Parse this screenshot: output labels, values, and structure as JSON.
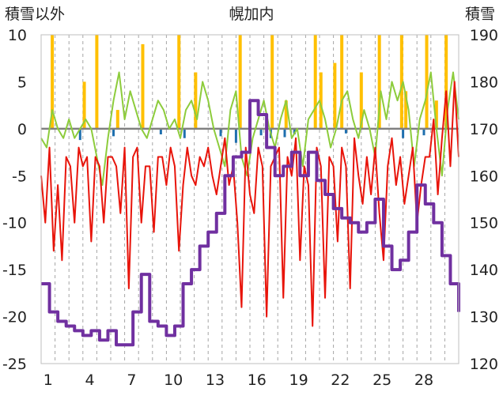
{
  "chart_data": {
    "type": "line",
    "title": "幌加内",
    "left_axis_label": "積雪以外",
    "right_axis_label": "積雪",
    "left_ylim": [
      -25,
      10
    ],
    "left_yticks": [
      "10",
      "5",
      "0",
      "-5",
      "-10",
      "-15",
      "-20",
      "-25"
    ],
    "right_ylim": [
      120,
      190
    ],
    "right_yticks": [
      "190",
      "180",
      "170",
      "160",
      "150",
      "140",
      "130",
      "120"
    ],
    "xlim": [
      0,
      30
    ],
    "xticks": [
      "1",
      "4",
      "7",
      "10",
      "13",
      "16",
      "19",
      "22",
      "25",
      "28"
    ],
    "grid": "vertical dashed lines at each day",
    "colors": {
      "temperature": "#e8140a",
      "snow_depth": "#7030a0",
      "green_series": "#8dcc3c",
      "orange_bars": "#ffc000",
      "blue_bars": "#1f6fae",
      "zero_line": "#808080"
    },
    "series": [
      {
        "axis": "left",
        "x": [
          0.0,
          0.3,
          0.6,
          0.9,
          1.2,
          1.5,
          1.8,
          2.1,
          2.4,
          2.7,
          3.0,
          3.3,
          3.6,
          3.9,
          4.2,
          4.5,
          4.8,
          5.1,
          5.4,
          5.7,
          6.0,
          6.3,
          6.6,
          6.9,
          7.2,
          7.5,
          7.8,
          8.1,
          8.4,
          8.7,
          9.0,
          9.3,
          9.6,
          9.9,
          10.2,
          10.5,
          10.8,
          11.1,
          11.4,
          11.7,
          12.0,
          12.3,
          12.6,
          12.9,
          13.2,
          13.5,
          13.8,
          14.1,
          14.4,
          14.7,
          15.0,
          15.3,
          15.6,
          15.9,
          16.2,
          16.5,
          16.8,
          17.1,
          17.4,
          17.7,
          18.0,
          18.3,
          18.6,
          18.9,
          19.2,
          19.5,
          19.8,
          20.1,
          20.4,
          20.7,
          21.0,
          21.3,
          21.6,
          21.9,
          22.2,
          22.5,
          22.8,
          23.1,
          23.4,
          23.7,
          24.0,
          24.3,
          24.6,
          24.9,
          25.2,
          25.5,
          25.8,
          26.1,
          26.4,
          26.7,
          27.0,
          27.3,
          27.6,
          27.9,
          28.2,
          28.5,
          28.8,
          29.1,
          29.4,
          29.7,
          30.0
        ],
        "values": [
          -5,
          -10,
          -2,
          -13,
          -6,
          -14,
          -3,
          -4,
          -10,
          -2,
          -4,
          -3,
          -12,
          -3,
          -4,
          -10,
          -3,
          -3,
          -4,
          -9,
          -2,
          -17,
          -3,
          -2,
          -10,
          -4,
          -4,
          -11,
          -3,
          -3,
          -6,
          -2,
          -4,
          -13,
          -6,
          -2,
          -5,
          -6,
          -3,
          -4,
          -2,
          -5,
          -7,
          -4,
          -1,
          -6,
          -4,
          -10,
          -19,
          -2,
          -7,
          -9,
          -2,
          -4,
          -20,
          -4,
          -3,
          -2,
          -18,
          -3,
          -5,
          -1,
          -14,
          -4,
          -6,
          -21,
          -2,
          -4,
          -18,
          -3,
          -4,
          -12,
          -2,
          -4,
          -17,
          -1,
          -5,
          -8,
          -3,
          -7,
          -2,
          -9,
          -14,
          -4,
          -1,
          -6,
          -3,
          -8,
          -5,
          -2,
          -10,
          -6,
          -3,
          -3,
          1,
          -7,
          -1,
          4,
          -4,
          5,
          -3
        ]
      },
      {
        "axis": "right",
        "x": [
          0.0,
          0.6,
          1.2,
          1.8,
          2.4,
          3.0,
          3.6,
          4.2,
          4.8,
          5.4,
          6.0,
          6.6,
          7.2,
          7.8,
          8.4,
          9.0,
          9.6,
          10.2,
          10.8,
          11.4,
          12.0,
          12.6,
          13.2,
          13.8,
          14.4,
          15.0,
          15.6,
          16.2,
          16.8,
          17.4,
          18.0,
          18.6,
          19.2,
          19.8,
          20.4,
          21.0,
          21.6,
          22.2,
          22.8,
          23.4,
          24.0,
          24.6,
          25.2,
          25.8,
          26.4,
          27.0,
          27.6,
          28.2,
          28.8,
          29.4,
          30.0
        ],
        "values": [
          137,
          131,
          129,
          128,
          127,
          126,
          127,
          125,
          127,
          124,
          124,
          131,
          139,
          129,
          128,
          126,
          128,
          137,
          140,
          145,
          148,
          152,
          160,
          164,
          165,
          176,
          173,
          166,
          160,
          162,
          165,
          160,
          165,
          159,
          156,
          153,
          151,
          150,
          148,
          150,
          155,
          145,
          140,
          142,
          148,
          158,
          154,
          150,
          143,
          137,
          131
        ]
      },
      {
        "axis": "left",
        "x": [
          0.0,
          0.4,
          0.8,
          1.2,
          1.6,
          2.0,
          2.4,
          2.8,
          3.2,
          3.6,
          4.0,
          4.4,
          4.8,
          5.2,
          5.6,
          6.0,
          6.4,
          6.8,
          7.2,
          7.6,
          8.0,
          8.4,
          8.8,
          9.2,
          9.6,
          10.0,
          10.4,
          10.8,
          11.2,
          11.6,
          12.0,
          12.4,
          12.8,
          13.2,
          13.6,
          14.0,
          14.4,
          14.8,
          15.2,
          15.6,
          16.0,
          16.4,
          16.8,
          17.2,
          17.6,
          18.0,
          18.4,
          18.8,
          19.2,
          19.6,
          20.0,
          20.4,
          20.8,
          21.2,
          21.6,
          22.0,
          22.4,
          22.8,
          23.2,
          23.6,
          24.0,
          24.4,
          24.8,
          25.2,
          25.6,
          26.0,
          26.4,
          26.8,
          27.2,
          27.6,
          28.0,
          28.4,
          28.8,
          29.2,
          29.6,
          30.0
        ],
        "values": [
          -1,
          -2,
          2,
          0,
          -1,
          1,
          -1,
          0,
          1,
          0,
          -3,
          -6,
          -1,
          3,
          6,
          1,
          4,
          2,
          0,
          -1,
          1,
          3,
          2,
          0,
          1,
          -1,
          2,
          3,
          1,
          5,
          3,
          0,
          -2,
          -4,
          2,
          4,
          -3,
          -5,
          -1,
          1,
          3,
          0,
          -2,
          1,
          3,
          -1,
          0,
          -4,
          1,
          2,
          3,
          1,
          -2,
          0,
          3,
          4,
          1,
          -1,
          2,
          0,
          -3,
          4,
          1,
          5,
          3,
          5,
          2,
          -4,
          1,
          3,
          6,
          0,
          -5,
          2,
          6,
          1
        ]
      },
      {
        "axis": "left",
        "type": "bar",
        "x": [
          0.8,
          3.1,
          4.0,
          5.5,
          7.3,
          9.9,
          11.1,
          14.3,
          16.6,
          17.6,
          19.7,
          20.1,
          21.1,
          21.6,
          23.0,
          24.3,
          25.9,
          26.2,
          27.7,
          28.4,
          29.1
        ],
        "values": [
          10,
          5,
          10,
          2,
          9,
          10,
          6,
          10,
          10,
          3,
          10,
          6,
          7,
          10,
          6,
          10,
          10,
          4,
          10,
          3,
          10
        ]
      },
      {
        "axis": "left",
        "type": "bar",
        "x": [
          2.8,
          5.2,
          8.6,
          10.3,
          12.9,
          14.0,
          15.8,
          16.5,
          17.5,
          18.2,
          21.9,
          26.0,
          27.5
        ],
        "values": [
          -1.2,
          -0.8,
          -0.6,
          -1.0,
          -0.8,
          -1.5,
          -0.7,
          -1.0,
          -0.9,
          -0.6,
          -0.5,
          -1.0,
          -0.7
        ]
      }
    ]
  }
}
